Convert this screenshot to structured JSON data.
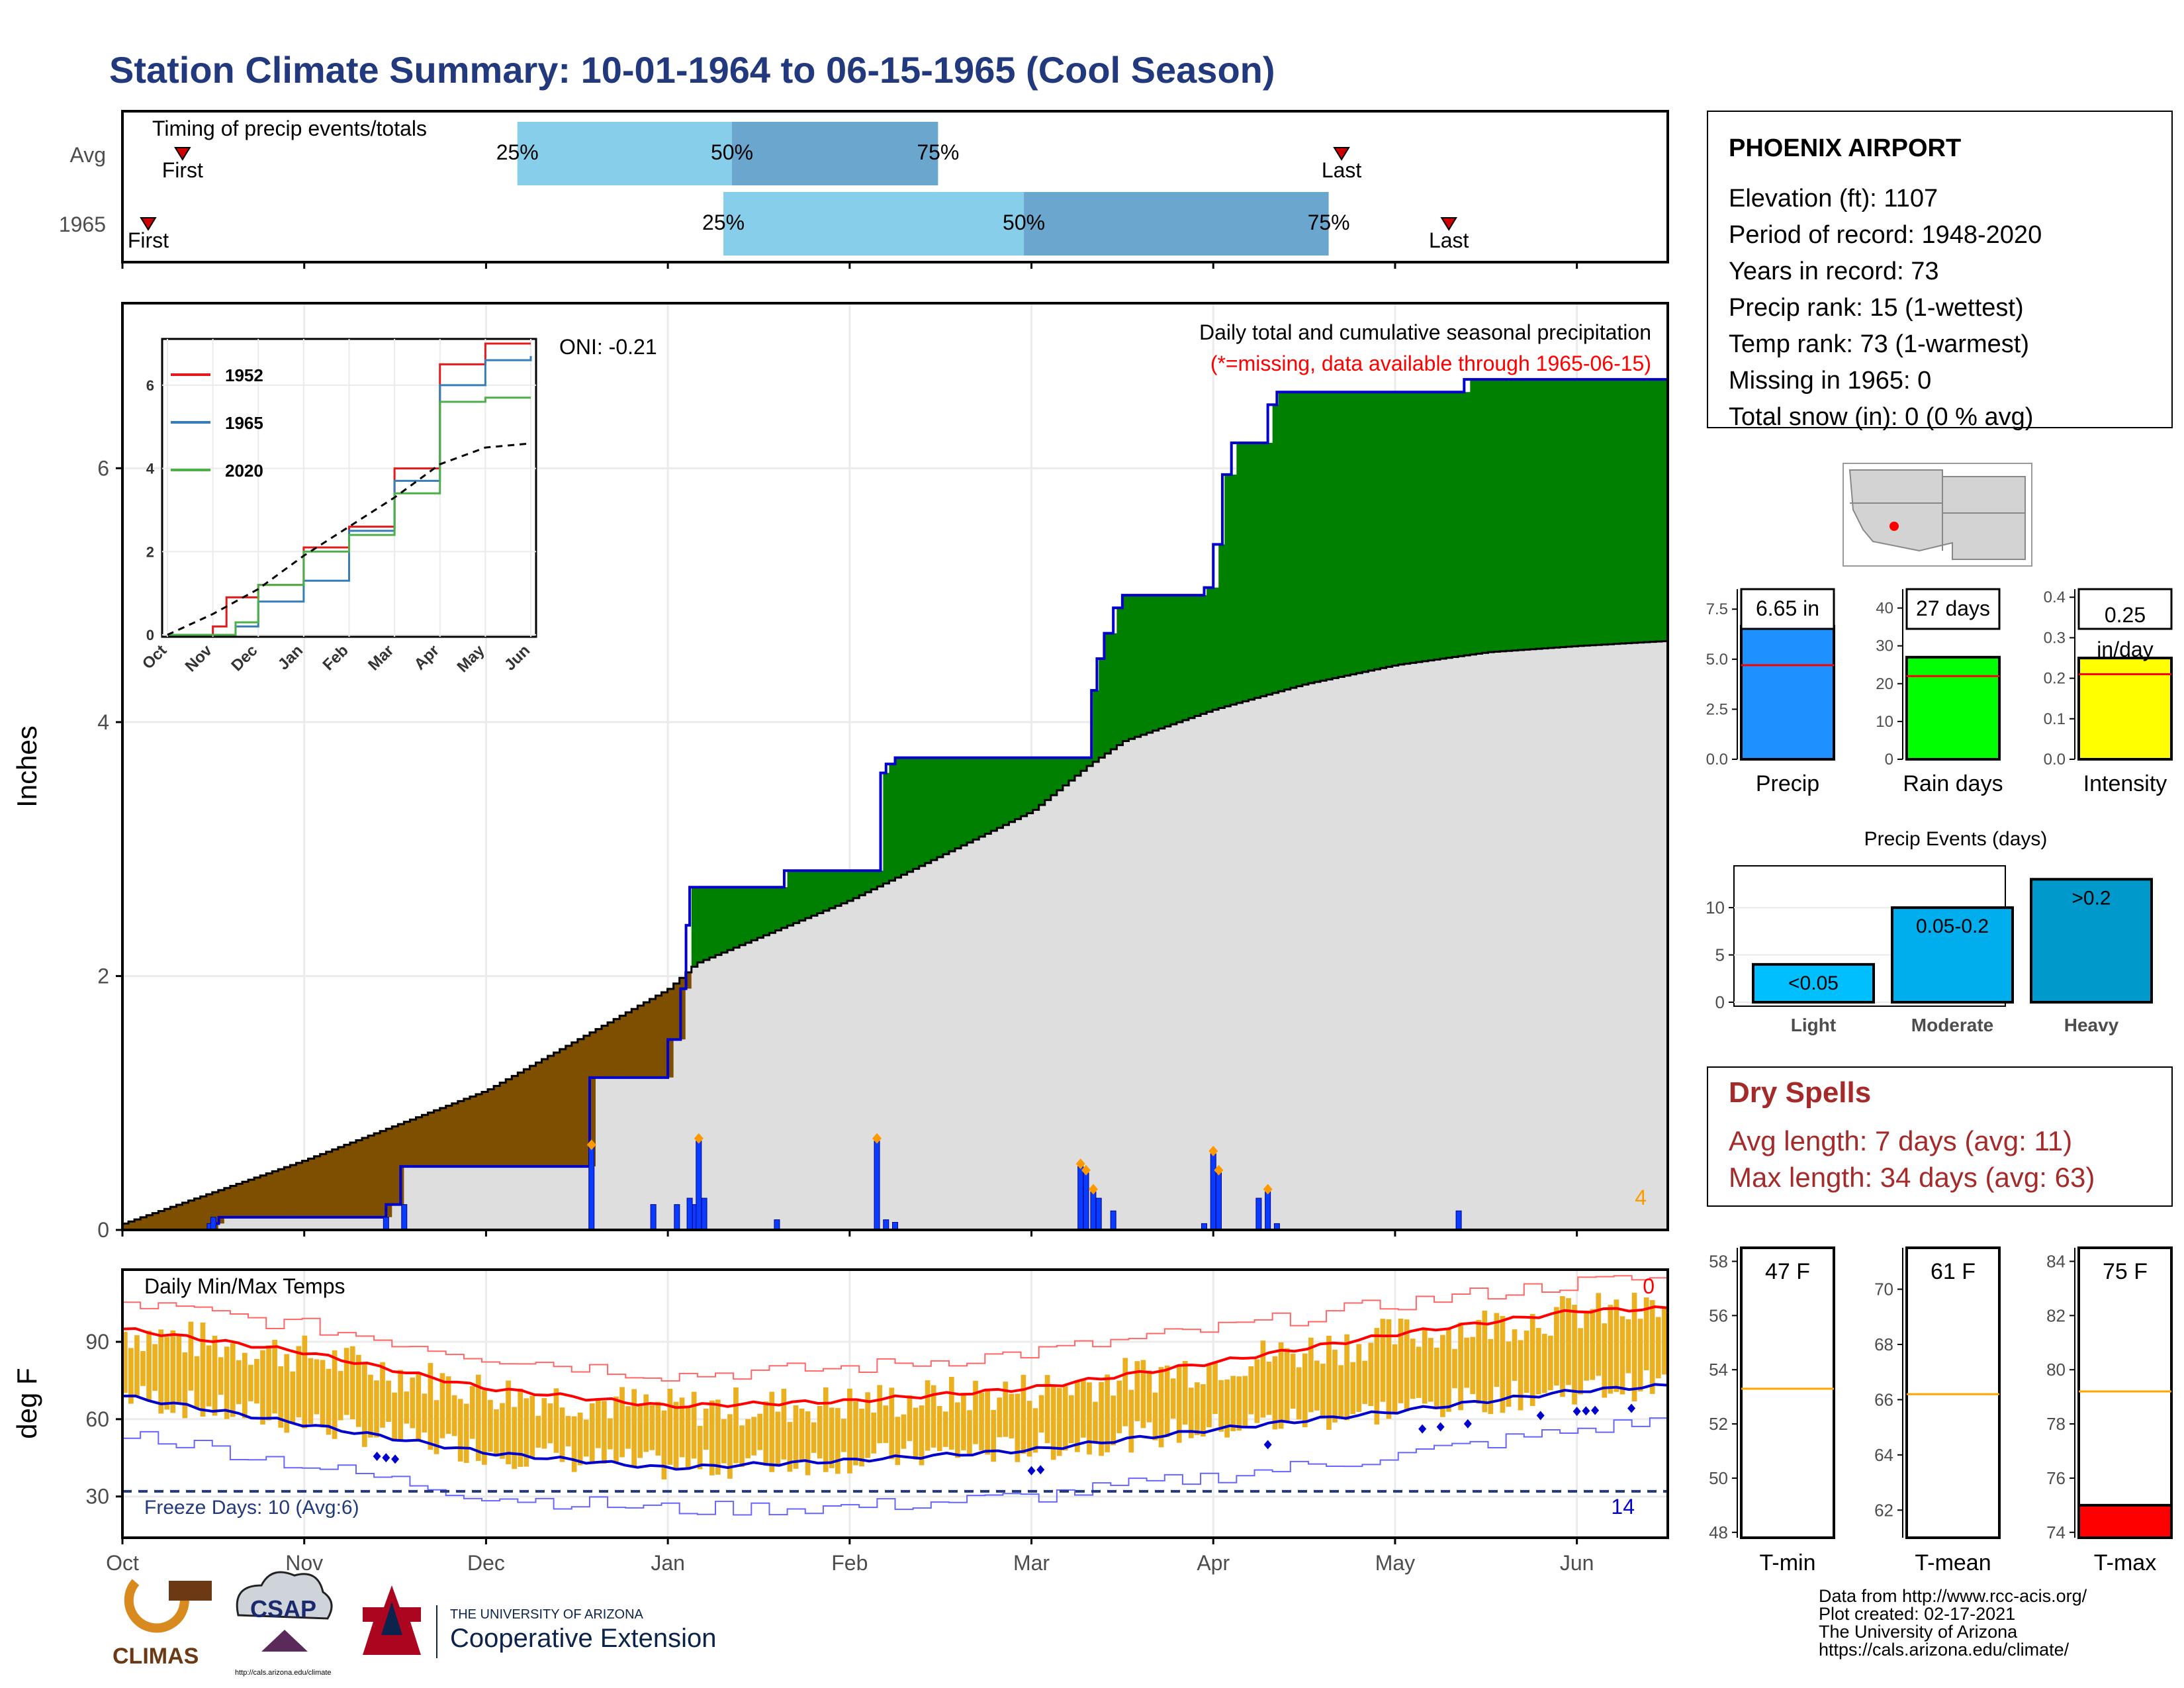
{
  "page_title": "Station Climate Summary: 10-01-1964 to 06-15-1965 (Cool Season)",
  "timing": {
    "title": "Timing of precip events/totals",
    "rows": [
      {
        "label": "Avg",
        "first_month": 11.4,
        "last_month": 38.4,
        "p25": 19.2,
        "p50": 24.2,
        "p75": 29.0
      },
      {
        "label": "1965",
        "first_month": 10.6,
        "last_month": 40.9,
        "p25": 24.0,
        "p50": 31.0,
        "p75": 38.1
      }
    ],
    "first_label": "First",
    "last_label": "Last",
    "p25_label": "25%",
    "p50_label": "50%",
    "p75_label": "75%"
  },
  "precip_panel": {
    "ylabel": "Inches",
    "annotation": "Daily total and cumulative seasonal precipitation",
    "missing_note": "(*=missing, data available through 1965-06-15)",
    "oni": "ONI: -0.21",
    "corner_count": "4",
    "y_ticks": [
      "0",
      "2",
      "4",
      "6"
    ]
  },
  "inset": {
    "legend": [
      "1952",
      "1965",
      "2020"
    ],
    "y_ticks": [
      "0",
      "2",
      "4",
      "6"
    ],
    "x_ticks": [
      "Oct",
      "Nov",
      "Dec",
      "Jan",
      "Feb",
      "Mar",
      "Apr",
      "May",
      "Jun"
    ]
  },
  "temp_panel": {
    "title": "Daily Min/Max Temps",
    "ylabel": "deg F",
    "freeze_label": "Freeze Days: 10 (Avg:6)",
    "count_top": "0",
    "count_bottom": "14",
    "y_ticks": [
      "30",
      "60",
      "90"
    ]
  },
  "month_labels": [
    "Oct",
    "Nov",
    "Dec",
    "Jan",
    "Feb",
    "Mar",
    "Apr",
    "May",
    "Jun"
  ],
  "station": {
    "name": "PHOENIX AIRPORT",
    "lines": [
      "Elevation (ft): 1107",
      "Period of record: 1948-2020",
      "Years in record: 73",
      "Precip rank: 15 (1-wettest)",
      "Temp rank: 73 (1-warmest)",
      "Missing in 1965: 0",
      "Total snow (in): 0 (0 % avg)"
    ]
  },
  "bars": {
    "precip": {
      "label": "Precip",
      "value_label": "6.65 in",
      "value": 6.65,
      "avg": 4.7,
      "ticks": [
        "0.0",
        "2.5",
        "5.0",
        "7.5"
      ]
    },
    "raindays": {
      "label": "Rain days",
      "value_label": "27 days",
      "value": 27,
      "avg": 22,
      "ticks": [
        "0",
        "10",
        "20",
        "30",
        "40"
      ]
    },
    "intensity": {
      "label": "Intensity",
      "value_label_1": "0.25",
      "value_label_2": "in/day",
      "value": 0.25,
      "avg": 0.21,
      "ticks": [
        "0.0",
        "0.1",
        "0.2",
        "0.3",
        "0.4"
      ]
    }
  },
  "events": {
    "title": "Precip Events (days)",
    "categories": [
      "Light",
      "Moderate",
      "Heavy"
    ],
    "bar_labels": [
      "<0.05",
      "0.05-0.2",
      ">0.2"
    ],
    "values": [
      4,
      10,
      13
    ],
    "ticks": [
      "0",
      "5",
      "10"
    ]
  },
  "dry_spells": {
    "title": "Dry Spells",
    "avg": "Avg length: 7 days (avg: 11)",
    "max": "Max length: 34 days (avg: 63)"
  },
  "temp_bars": {
    "tmin": {
      "label": "T-min",
      "value_label": "47 F",
      "value": 47,
      "avg": 53.3,
      "ticks": [
        "48",
        "50",
        "52",
        "54",
        "56",
        "58"
      ]
    },
    "tmean": {
      "label": "T-mean",
      "value_label": "61 F",
      "value": 61,
      "avg": 66.2,
      "ticks": [
        "62",
        "64",
        "66",
        "68",
        "70"
      ]
    },
    "tmax": {
      "label": "T-max",
      "value_label": "75 F",
      "value": 75,
      "avg": 79.2,
      "ticks": [
        "74",
        "76",
        "78",
        "80",
        "82",
        "84"
      ]
    }
  },
  "footer": {
    "lines": [
      "Data from http://www.rcc-acis.org/",
      "Plot created: 02-17-2021",
      "The University of Arizona",
      "https://cals.arizona.edu/climate/"
    ],
    "climas": "CLIMAS",
    "csap": "CSAP",
    "csap_url": "http://cals.arizona.edu/climate",
    "ua_line1": "THE UNIVERSITY OF ARIZONA",
    "ua_line2": "Cooperative Extension"
  },
  "colors": {
    "title": "#22397d",
    "accum_above": "#008000",
    "accum_below": "#7f4f00",
    "normal_fill": "#dedede",
    "obs_line": "#0000cc",
    "daily_bar": "#0a3cff",
    "tmax_avg": "#ff0000",
    "tmin_avg": "#0000cc",
    "temp_bar": "#eab020",
    "dry": "#a52a2a"
  },
  "chart_data": [
    {
      "type": "area",
      "title": "Daily total and cumulative seasonal precipitation",
      "ylabel": "Inches",
      "ylim": [
        0,
        7.3
      ],
      "x_unit": "month index (0=Oct 1964)",
      "series": [
        {
          "name": "cumulative_observed",
          "steps": [
            [
              0.0,
              0.0
            ],
            [
              0.5,
              0.05
            ],
            [
              0.53,
              0.1
            ],
            [
              1.45,
              0.2
            ],
            [
              1.53,
              0.5
            ],
            [
              2.55,
              0.5
            ],
            [
              2.57,
              1.2
            ],
            [
              2.92,
              1.2
            ],
            [
              3.0,
              1.5
            ],
            [
              3.07,
              1.9
            ],
            [
              3.1,
              2.4
            ],
            [
              3.12,
              2.7
            ],
            [
              3.62,
              2.7
            ],
            [
              3.64,
              2.83
            ],
            [
              4.15,
              2.83
            ],
            [
              4.17,
              3.6
            ],
            [
              4.2,
              3.67
            ],
            [
              4.25,
              3.72
            ],
            [
              5.3,
              3.72
            ],
            [
              5.33,
              4.25
            ],
            [
              5.36,
              4.5
            ],
            [
              5.4,
              4.7
            ],
            [
              5.45,
              4.9
            ],
            [
              5.5,
              5.0
            ],
            [
              5.75,
              5.0
            ],
            [
              5.95,
              5.06
            ],
            [
              6.0,
              5.4
            ],
            [
              6.05,
              5.95
            ],
            [
              6.1,
              6.2
            ],
            [
              6.25,
              6.2
            ],
            [
              6.3,
              6.5
            ],
            [
              6.35,
              6.6
            ],
            [
              7.35,
              6.6
            ],
            [
              7.38,
              6.7
            ],
            [
              8.5,
              6.7
            ]
          ]
        },
        {
          "name": "normal",
          "points": [
            [
              0.0,
              0.05
            ],
            [
              1.0,
              0.55
            ],
            [
              2.0,
              1.1
            ],
            [
              3.0,
              1.9
            ],
            [
              3.15,
              2.1
            ],
            [
              4.0,
              2.6
            ],
            [
              4.5,
              2.95
            ],
            [
              5.0,
              3.3
            ],
            [
              5.3,
              3.65
            ],
            [
              5.5,
              3.85
            ],
            [
              6.0,
              4.1
            ],
            [
              6.5,
              4.3
            ],
            [
              7.0,
              4.45
            ],
            [
              7.5,
              4.55
            ],
            [
              8.0,
              4.6
            ],
            [
              8.5,
              4.64
            ]
          ]
        },
        {
          "name": "daily_precip",
          "points": [
            [
              0.48,
              0.05
            ],
            [
              0.5,
              0.1
            ],
            [
              1.45,
              0.1
            ],
            [
              1.55,
              0.2
            ],
            [
              2.58,
              0.65
            ],
            [
              2.92,
              0.2
            ],
            [
              3.05,
              0.2
            ],
            [
              3.12,
              0.25
            ],
            [
              3.15,
              0.2
            ],
            [
              3.17,
              0.7
            ],
            [
              3.2,
              0.25
            ],
            [
              3.6,
              0.08
            ],
            [
              4.15,
              0.7
            ],
            [
              4.2,
              0.08
            ],
            [
              4.25,
              0.06
            ],
            [
              5.27,
              0.5
            ],
            [
              5.3,
              0.45
            ],
            [
              5.34,
              0.3
            ],
            [
              5.37,
              0.25
            ],
            [
              5.45,
              0.15
            ],
            [
              5.95,
              0.05
            ],
            [
              6.0,
              0.6
            ],
            [
              6.03,
              0.45
            ],
            [
              6.25,
              0.25
            ],
            [
              6.3,
              0.3
            ],
            [
              6.35,
              0.05
            ],
            [
              7.35,
              0.15
            ]
          ]
        }
      ]
    },
    {
      "type": "line",
      "title": "",
      "ylim": [
        0,
        7
      ],
      "categories": [
        "Oct",
        "Nov",
        "Dec",
        "Jan",
        "Feb",
        "Mar",
        "Apr",
        "May",
        "Jun"
      ],
      "series": [
        {
          "name": "1952",
          "points": [
            [
              0,
              0
            ],
            [
              1,
              0.2
            ],
            [
              1.3,
              0.9
            ],
            [
              2,
              1.2
            ],
            [
              3,
              2.1
            ],
            [
              4,
              2.6
            ],
            [
              5,
              4.0
            ],
            [
              6,
              6.5
            ],
            [
              7,
              7.0
            ],
            [
              8,
              7.0
            ]
          ]
        },
        {
          "name": "1965",
          "points": [
            [
              0,
              0
            ],
            [
              1.5,
              0.2
            ],
            [
              2,
              0.8
            ],
            [
              3,
              1.3
            ],
            [
              4,
              2.5
            ],
            [
              5,
              3.7
            ],
            [
              6,
              6.0
            ],
            [
              7,
              6.6
            ],
            [
              8,
              6.7
            ]
          ]
        },
        {
          "name": "2020",
          "points": [
            [
              0,
              0
            ],
            [
              1.5,
              0.3
            ],
            [
              2,
              1.2
            ],
            [
              3,
              2.0
            ],
            [
              4,
              2.4
            ],
            [
              5,
              3.4
            ],
            [
              6,
              5.6
            ],
            [
              7,
              5.7
            ],
            [
              8,
              5.7
            ]
          ]
        },
        {
          "name": "normal",
          "points": [
            [
              0,
              0
            ],
            [
              1,
              0.5
            ],
            [
              2,
              1.1
            ],
            [
              3,
              1.9
            ],
            [
              4,
              2.6
            ],
            [
              5,
              3.3
            ],
            [
              6,
              4.1
            ],
            [
              7,
              4.5
            ],
            [
              8,
              4.6
            ]
          ]
        }
      ]
    },
    {
      "type": "bar",
      "title": "Daily Min/Max Temps",
      "ylabel": "deg F",
      "ylim": [
        14,
        118
      ],
      "series": [
        {
          "name": "tmax_avg",
          "points": [
            [
              0,
              95
            ],
            [
              1,
              86
            ],
            [
              2,
              72
            ],
            [
              3,
              65
            ],
            [
              4,
              67
            ],
            [
              5,
              72
            ],
            [
              6,
              82
            ],
            [
              7,
              93
            ],
            [
              8,
              102
            ],
            [
              8.5,
              103
            ]
          ]
        },
        {
          "name": "tmin_avg",
          "points": [
            [
              0,
              69
            ],
            [
              1,
              58
            ],
            [
              2,
              47
            ],
            [
              3,
              41
            ],
            [
              4,
              44
            ],
            [
              5,
              48
            ],
            [
              6,
              56
            ],
            [
              7,
              63
            ],
            [
              8,
              71
            ],
            [
              8.5,
              73
            ]
          ]
        },
        {
          "name": "record_high",
          "points": [
            [
              0,
              105
            ],
            [
              1,
              96
            ],
            [
              2,
              84
            ],
            [
              3,
              77
            ],
            [
              4,
              80
            ],
            [
              5,
              86
            ],
            [
              6,
              95
            ],
            [
              7,
              105
            ],
            [
              8,
              113
            ],
            [
              8.5,
              115
            ]
          ]
        },
        {
          "name": "record_low",
          "points": [
            [
              0,
              55
            ],
            [
              1,
              42
            ],
            [
              2,
              30
            ],
            [
              3,
              25
            ],
            [
              4,
              26
            ],
            [
              5,
              30
            ],
            [
              6,
              38
            ],
            [
              7,
              46
            ],
            [
              8,
              56
            ],
            [
              8.5,
              60
            ]
          ]
        }
      ]
    }
  ]
}
